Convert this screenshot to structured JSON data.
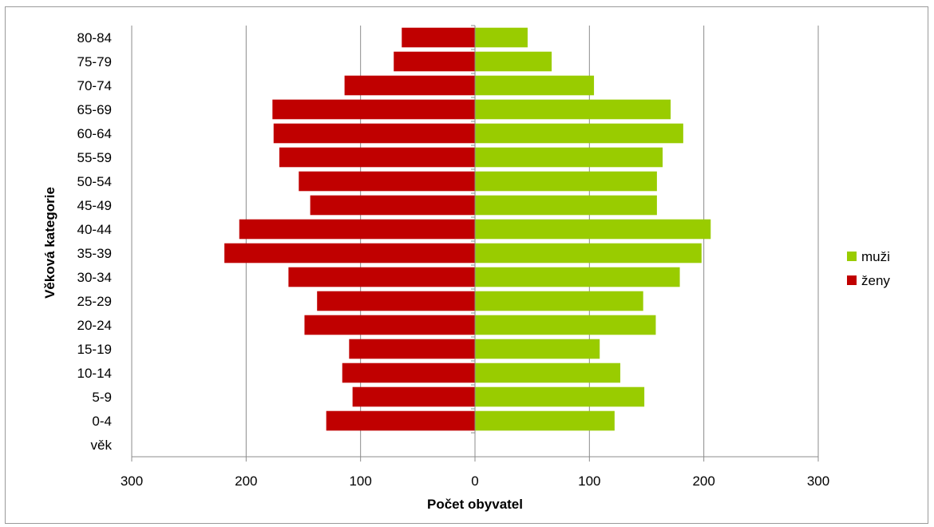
{
  "chart_data": {
    "type": "bar",
    "orientation": "horizontal",
    "xlabel": "Počet obyvatel",
    "ylabel": "Věková kategorie",
    "xlim": [
      -300,
      300
    ],
    "xticks": [
      -300,
      -200,
      -100,
      0,
      100,
      200,
      300
    ],
    "xtick_labels": [
      "300",
      "200",
      "100",
      "0",
      "100",
      "200",
      "300"
    ],
    "categories": [
      "věk",
      "0-4",
      "5-9",
      "10-14",
      "15-19",
      "20-24",
      "25-29",
      "30-34",
      "35-39",
      "40-44",
      "45-49",
      "50-54",
      "55-59",
      "60-64",
      "65-69",
      "70-74",
      "75-79",
      "80-84"
    ],
    "series": [
      {
        "name": "muži",
        "color": "#99cc00",
        "values": [
          0,
          122,
          148,
          127,
          109,
          158,
          147,
          179,
          198,
          206,
          159,
          159,
          164,
          182,
          171,
          104,
          67,
          46
        ]
      },
      {
        "name": "ženy",
        "color": "#c00000",
        "values": [
          0,
          -130,
          -107,
          -116,
          -110,
          -149,
          -138,
          -163,
          -219,
          -206,
          -144,
          -154,
          -171,
          -176,
          -177,
          -114,
          -71,
          -64
        ]
      }
    ],
    "grid": "vertical",
    "legend_position": "right"
  }
}
